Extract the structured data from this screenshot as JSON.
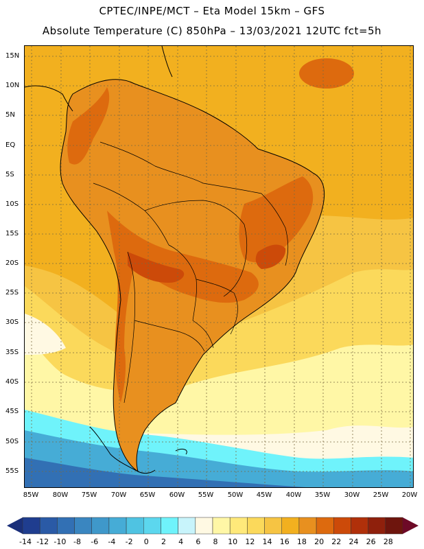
{
  "title_line1": "CPTEC/INPE/MCT –  Eta Model 15km – GFS",
  "title_line2": "Absolute Temperature (C) 850hPa – 13/03/2021 12UTC fct=5h",
  "lat_labels": [
    "15N",
    "10N",
    "5N",
    "EQ",
    "5S",
    "10S",
    "15S",
    "20S",
    "25S",
    "30S",
    "35S",
    "40S",
    "45S",
    "50S",
    "55S"
  ],
  "lon_labels": [
    "85W",
    "80W",
    "75W",
    "70W",
    "65W",
    "60W",
    "55W",
    "50W",
    "45W",
    "40W",
    "35W",
    "30W",
    "25W",
    "20W"
  ],
  "colorbar": {
    "labels": [
      "-14",
      "-12",
      "-10",
      "-8",
      "-6",
      "-4",
      "-2",
      "0",
      "2",
      "4",
      "6",
      "8",
      "10",
      "12",
      "14",
      "16",
      "18",
      "20",
      "22",
      "24",
      "26",
      "28"
    ],
    "colors": [
      "#1f3d8f",
      "#2a5aa6",
      "#3270b4",
      "#3a86c0",
      "#3f98ca",
      "#46acd6",
      "#4fc3e2",
      "#5cd7ee",
      "#6ff3fb",
      "#c8f4fb",
      "#fff9e3",
      "#fff7a6",
      "#ffe97a",
      "#fbd95b",
      "#f6c443",
      "#f2b01f",
      "#e8901f",
      "#dd6a0e",
      "#cc4a09",
      "#b0300a",
      "#8f200c",
      "#6e150d"
    ],
    "under_color": "#1a2f7a",
    "over_color": "#6d0a27"
  },
  "map_colors": {
    "ocean_warm": "#f2b01f",
    "ocean_mid": "#f6c443",
    "ocean_cool": "#fbd95b",
    "pale": "#fff7a6",
    "cream": "#fff9e3",
    "cyan": "#6ff3fb",
    "sky": "#46acd6",
    "blue": "#3270b4",
    "land_hot": "#e8901f",
    "land_hotter": "#dd6a0e",
    "land_hottest": "#cc4a09"
  }
}
